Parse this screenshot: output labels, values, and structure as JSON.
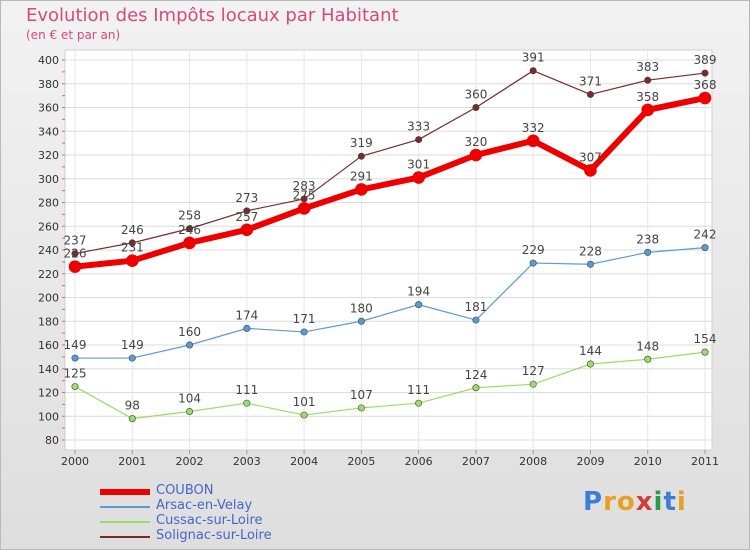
{
  "header": {
    "title": "Evolution des Impôts locaux par Habitant",
    "subtitle": "(en € et par an)"
  },
  "logo": {
    "text": "Proxiti"
  },
  "chart_data": {
    "type": "line",
    "title": "Evolution des Impôts locaux par Habitant",
    "subtitle": "(en € et par an)",
    "xlabel": "",
    "ylabel": "",
    "categories": [
      "2000",
      "2001",
      "2002",
      "2003",
      "2004",
      "2005",
      "2006",
      "2007",
      "2008",
      "2009",
      "2010",
      "2011"
    ],
    "ylim": [
      80,
      400
    ],
    "yticks": [
      80,
      100,
      120,
      140,
      160,
      180,
      200,
      220,
      240,
      260,
      280,
      300,
      320,
      340,
      360,
      380,
      400
    ],
    "grid": true,
    "legend_position": "bottom-left",
    "series": [
      {
        "name": "COUBON",
        "color": "#ee0000",
        "width": 6,
        "values": [
          226,
          231,
          246,
          257,
          275,
          291,
          301,
          320,
          332,
          307,
          358,
          368
        ]
      },
      {
        "name": "Arsac-en-Velay",
        "color": "#5b9bd5",
        "width": 1.2,
        "values": [
          149,
          149,
          160,
          174,
          171,
          180,
          194,
          181,
          229,
          228,
          238,
          242
        ]
      },
      {
        "name": "Cussac-sur-Loire",
        "color": "#99dd66",
        "width": 1.2,
        "values": [
          125,
          98,
          104,
          111,
          101,
          107,
          111,
          124,
          127,
          144,
          148,
          154
        ]
      },
      {
        "name": "Solignac-sur-Loire",
        "color": "#7a2a2a",
        "width": 1.2,
        "values": [
          237,
          246,
          258,
          273,
          283,
          319,
          333,
          360,
          391,
          371,
          383,
          389
        ]
      }
    ]
  }
}
